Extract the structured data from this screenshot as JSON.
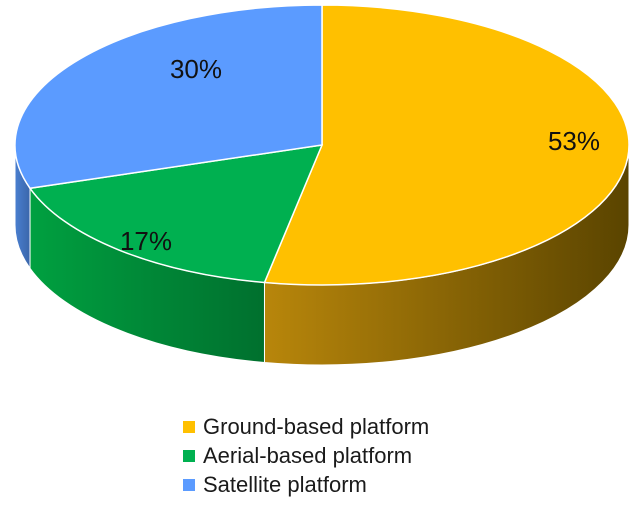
{
  "chart_data": {
    "type": "pie",
    "style": "3d",
    "categories": [
      "Ground-based platform",
      "Aerial-based platform",
      "Satellite platform"
    ],
    "values": [
      53,
      17,
      30
    ],
    "labels": [
      "53%",
      "17%",
      "30%"
    ],
    "colors": [
      "#FFC000",
      "#00B050",
      "#5B9BFF"
    ],
    "legend_position": "bottom"
  }
}
